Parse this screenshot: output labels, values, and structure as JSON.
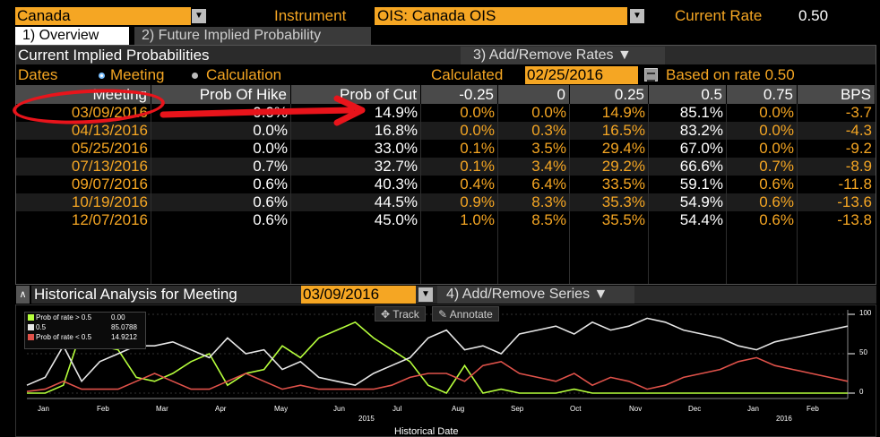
{
  "topbar": {
    "country": "Canada",
    "instrument_label": "Instrument",
    "instrument_value": "OIS: Canada OIS",
    "current_rate_label": "Current Rate",
    "current_rate_value": "0.50"
  },
  "tabs": [
    {
      "label": "1) Overview",
      "active": true
    },
    {
      "label": "2) Future Implied Probability",
      "active": false
    }
  ],
  "section": {
    "title": "Current Implied Probabilities",
    "add_remove_rates": "3) Add/Remove Rates ▼"
  },
  "dates": {
    "label": "Dates",
    "opt_meeting": "Meeting",
    "opt_calculation": "Calculation",
    "calculated_label": "Calculated",
    "calculated_value": "02/25/2016",
    "based_on": "Based on rate 0.50"
  },
  "table": {
    "headers": [
      "Meeting",
      "Prob Of Hike",
      "Prob of Cut",
      "-0.25",
      "0",
      "0.25",
      "0.5",
      "0.75",
      "BPS"
    ],
    "rows": [
      [
        "03/09/2016",
        "0.0%",
        "14.9%",
        "0.0%",
        "0.0%",
        "14.9%",
        "85.1%",
        "0.0%",
        "-3.7"
      ],
      [
        "04/13/2016",
        "0.0%",
        "16.8%",
        "0.0%",
        "0.3%",
        "16.5%",
        "83.2%",
        "0.0%",
        "-4.3"
      ],
      [
        "05/25/2016",
        "0.0%",
        "33.0%",
        "0.1%",
        "3.5%",
        "29.4%",
        "67.0%",
        "0.0%",
        "-9.2"
      ],
      [
        "07/13/2016",
        "0.7%",
        "32.7%",
        "0.1%",
        "3.4%",
        "29.2%",
        "66.6%",
        "0.7%",
        "-8.9"
      ],
      [
        "09/07/2016",
        "0.6%",
        "40.3%",
        "0.4%",
        "6.4%",
        "33.5%",
        "59.1%",
        "0.6%",
        "-11.8"
      ],
      [
        "10/19/2016",
        "0.6%",
        "44.5%",
        "0.9%",
        "8.3%",
        "35.3%",
        "54.9%",
        "0.6%",
        "-13.6"
      ],
      [
        "12/07/2016",
        "0.6%",
        "45.0%",
        "1.0%",
        "8.5%",
        "35.5%",
        "54.4%",
        "0.6%",
        "-13.8"
      ]
    ]
  },
  "history": {
    "title": "Historical Analysis for Meeting",
    "meeting_date": "03/09/2016",
    "add_remove_series": "4) Add/Remove Series ▼",
    "track_label": "Track",
    "annotate_label": "Annotate",
    "x_title": "Historical Date",
    "year_2015": "2015",
    "year_2016": "2016"
  },
  "colors": {
    "orange": "#f5a623",
    "green": "#b6ff3c",
    "white": "#e6e6e6",
    "red": "#e0524a",
    "annotation": "#e8141b"
  },
  "chart_data": {
    "type": "line",
    "title": "Historical Analysis for Meeting 03/09/2016",
    "xlabel": "Historical Date",
    "ylabel": "",
    "ylim": [
      0,
      100
    ],
    "y_ticks": [
      "100",
      "50",
      "0"
    ],
    "x_ticks": [
      "Jan",
      "Feb",
      "Mar",
      "Apr",
      "May",
      "Jun",
      "Jul",
      "Aug",
      "Sep",
      "Oct",
      "Nov",
      "Dec",
      "Jan",
      "Feb"
    ],
    "legend": [
      {
        "name": "Prob of rate > 0.5",
        "value": "0.00",
        "color": "#b6ff3c"
      },
      {
        "name": "0.5",
        "value": "85.0788",
        "color": "#e6e6e6"
      },
      {
        "name": "Prob of rate < 0.5",
        "value": "14.9212",
        "color": "#e0524a"
      }
    ],
    "series": [
      {
        "name": "Prob of rate > 0.5",
        "values": [
          0,
          0,
          10,
          80,
          60,
          55,
          20,
          15,
          25,
          40,
          50,
          10,
          25,
          30,
          60,
          45,
          70,
          80,
          90,
          70,
          55,
          40,
          10,
          0,
          35,
          0,
          5,
          0,
          0,
          0,
          5,
          0,
          0,
          0,
          0,
          0,
          0,
          0,
          0,
          0,
          0,
          0,
          0,
          0,
          0,
          0
        ]
      },
      {
        "name": "0.5",
        "values": [
          10,
          20,
          60,
          15,
          40,
          50,
          60,
          60,
          65,
          55,
          45,
          70,
          50,
          55,
          30,
          40,
          20,
          15,
          10,
          25,
          35,
          45,
          70,
          80,
          55,
          60,
          50,
          75,
          80,
          85,
          75,
          90,
          80,
          85,
          95,
          90,
          80,
          75,
          70,
          60,
          55,
          65,
          70,
          75,
          80,
          85
        ]
      },
      {
        "name": "Prob of rate < 0.5",
        "values": [
          2,
          5,
          15,
          5,
          5,
          5,
          15,
          25,
          15,
          5,
          5,
          15,
          25,
          15,
          5,
          10,
          5,
          5,
          5,
          5,
          10,
          20,
          25,
          25,
          15,
          35,
          40,
          25,
          20,
          15,
          25,
          10,
          20,
          15,
          5,
          10,
          20,
          25,
          30,
          40,
          45,
          35,
          30,
          25,
          20,
          15
        ]
      }
    ]
  }
}
